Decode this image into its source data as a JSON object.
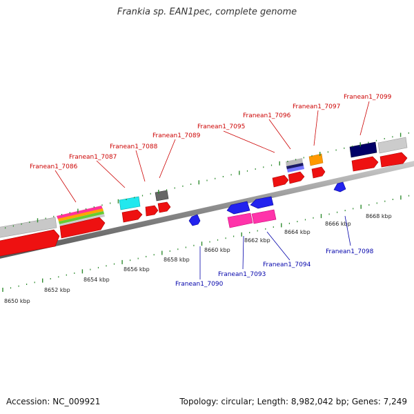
{
  "title": "Frankia sp. EAN1pec, complete genome",
  "footer": {
    "accession": "Accession: NC_009921",
    "summary": "Topology: circular; Length: 8,982,042 bp; Genes: 7,249"
  },
  "colors": {
    "forward_label": "#cc0000",
    "reverse_label": "#0000aa",
    "tick_green": "#2e8b2e",
    "backbone": "#888888"
  },
  "ruler_labels": [
    {
      "text": "8650 kbp",
      "kbp": 8650
    },
    {
      "text": "8652 kbp",
      "kbp": 8652
    },
    {
      "text": "8654 kbp",
      "kbp": 8654
    },
    {
      "text": "8656 kbp",
      "kbp": 8656
    },
    {
      "text": "8658 kbp",
      "kbp": 8658
    },
    {
      "text": "8660 kbp",
      "kbp": 8660
    },
    {
      "text": "8662 kbp",
      "kbp": 8662
    },
    {
      "text": "8664 kbp",
      "kbp": 8664
    },
    {
      "text": "8666 kbp",
      "kbp": 8666
    },
    {
      "text": "8668 kbp",
      "kbp": 8668
    }
  ],
  "forward_gene_labels": [
    "Franean1_7086",
    "Franean1_7087",
    "Franean1_7088",
    "Franean1_7089",
    "Franean1_7095",
    "Franean1_7096",
    "Franean1_7097",
    "Franean1_7099"
  ],
  "reverse_gene_labels": [
    "Franean1_7090",
    "Franean1_7093",
    "Franean1_7094",
    "Franean1_7098"
  ]
}
